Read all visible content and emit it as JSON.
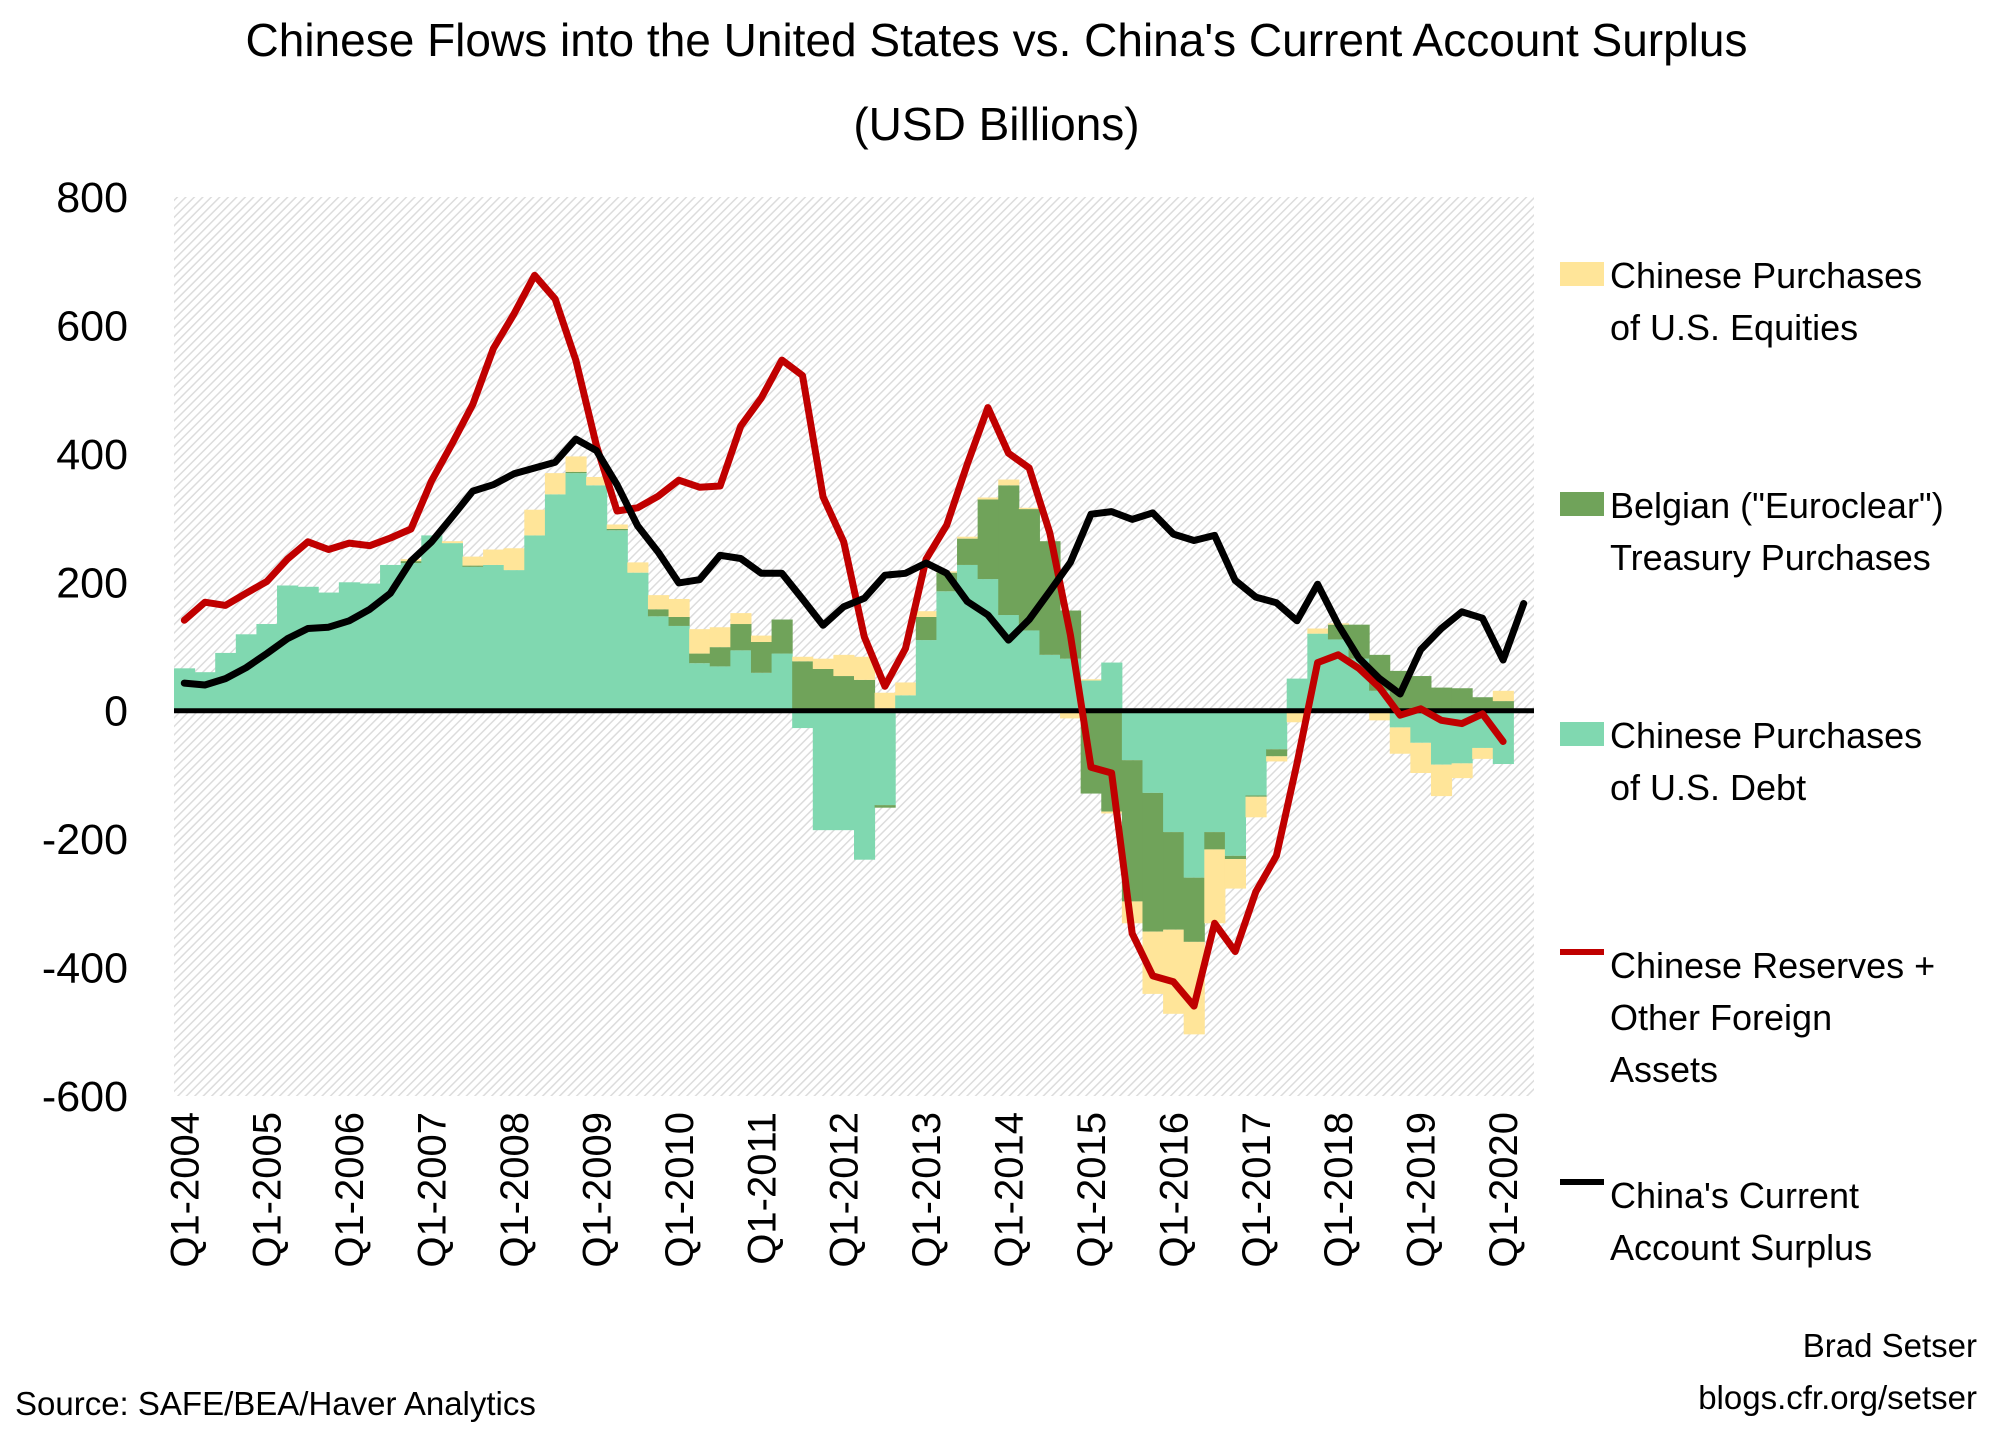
{
  "title": {
    "line1": "Chinese Flows into the United States vs. China's Current Account Surplus",
    "line2": "(USD Billions)"
  },
  "source": "Source: SAFE/BEA/Haver Analytics",
  "credit": {
    "author": "Brad Setser",
    "site": "blogs.cfr.org/setser"
  },
  "legend": [
    {
      "label": "Chinese Purchases\nof U.S. Equities",
      "color": "#ffe599",
      "kind": "bar"
    },
    {
      "label": "Belgian (\"Euroclear\")\nTreasury Purchases",
      "color": "#70a35a",
      "kind": "bar"
    },
    {
      "label": "Chinese Purchases\nof U.S. Debt",
      "color": "#80d8b0",
      "kind": "bar"
    },
    {
      "label": "Chinese Reserves +\nOther Foreign\nAssets",
      "color": "#c00000",
      "kind": "line"
    },
    {
      "label": "China's Current\nAccount Surplus",
      "color": "#000000",
      "kind": "line"
    }
  ],
  "chart_data": {
    "type": "bar",
    "stacked": true,
    "title": "Chinese Flows into the United States vs. China's Current Account Surplus (USD Billions)",
    "ylim": [
      -600,
      800
    ],
    "yticks": [
      "800",
      "600",
      "400",
      "200",
      "0",
      "-200",
      "-400",
      "-600"
    ],
    "ytick_values": [
      800,
      600,
      400,
      200,
      0,
      -200,
      -400,
      -600
    ],
    "grid": false,
    "legend_position": "right",
    "x_start": "Q1-2004",
    "x_count": 66,
    "xticks": [
      "Q1-2004",
      "Q1-2005",
      "Q1-2006",
      "Q1-2007",
      "Q1-2008",
      "Q1-2009",
      "Q1-2010",
      "Q1-2011",
      "Q1-2012",
      "Q1-2013",
      "Q1-2014",
      "Q1-2015",
      "Q1-2016",
      "Q1-2017",
      "Q1-2018",
      "Q1-2019",
      "Q1-2020"
    ],
    "series": [
      {
        "name": "Chinese Purchases of U.S. Debt",
        "type": "bar",
        "color": "#80d8b0",
        "values": [
          66,
          60,
          90,
          119,
          135,
          195,
          193,
          184,
          200,
          198,
          227,
          230,
          273,
          261,
          224,
          227,
          219,
          273,
          337,
          370,
          351,
          281,
          215,
          147,
          132,
          74,
          69,
          94,
          59,
          89,
          -27,
          -186,
          -186,
          -232,
          -147,
          24,
          110,
          186,
          227,
          205,
          149,
          125,
          87,
          81,
          47,
          75,
          -77,
          -128,
          -189,
          -260,
          -189,
          -226,
          -132,
          -60,
          50,
          120,
          111,
          81,
          31,
          -26,
          -50,
          -84,
          -82,
          -58,
          -83,
          null
        ]
      },
      {
        "name": "Belgian (\"Euroclear\") Treasury Purchases",
        "type": "bar",
        "color": "#70a35a",
        "values": [
          0,
          0,
          0,
          0,
          0,
          0,
          0,
          0,
          0,
          0,
          0,
          3,
          0,
          0,
          2,
          0,
          0,
          0,
          0,
          2,
          0,
          2,
          0,
          11,
          14,
          15,
          30,
          41,
          48,
          53,
          77,
          65,
          54,
          48,
          -4,
          0,
          36,
          29,
          41,
          124,
          202,
          189,
          177,
          75,
          -129,
          -157,
          -220,
          -216,
          -152,
          -100,
          -27,
          -5,
          -2,
          -11,
          0,
          0,
          23,
          53,
          56,
          62,
          54,
          36,
          35,
          21,
          15,
          null
        ]
      },
      {
        "name": "Chinese Purchases of U.S. Equities",
        "type": "bar",
        "color": "#ffe599",
        "values": [
          0,
          0,
          0,
          0,
          0,
          0,
          0,
          0,
          0,
          0,
          0,
          3,
          0,
          3,
          14,
          24,
          34,
          40,
          33,
          24,
          13,
          7,
          16,
          22,
          28,
          38,
          31,
          17,
          10,
          0,
          7,
          16,
          33,
          36,
          28,
          20,
          9,
          2,
          3,
          3,
          9,
          2,
          0,
          -12,
          2,
          -3,
          -34,
          -97,
          -131,
          -144,
          -115,
          -46,
          -32,
          -8,
          -18,
          8,
          2,
          0,
          -15,
          -41,
          -47,
          -49,
          -23,
          -17,
          16,
          null
        ]
      },
      {
        "name": "Chinese Reserves + Other Foreign Assets",
        "type": "line",
        "color": "#c00000",
        "values": [
          141,
          169,
          164,
          183,
          201,
          236,
          263,
          251,
          261,
          257,
          269,
          283,
          358,
          416,
          477,
          564,
          618,
          678,
          641,
          546,
          413,
          311,
          316,
          334,
          359,
          348,
          350,
          443,
          487,
          546,
          522,
          333,
          263,
          115,
          38,
          97,
          236,
          289,
          384,
          472,
          401,
          378,
          277,
          118,
          -88,
          -97,
          -347,
          -413,
          -422,
          -460,
          -331,
          -375,
          -282,
          -226,
          -82,
          75,
          87,
          66,
          36,
          -7,
          3,
          -15,
          -20,
          -5,
          -48,
          null
        ]
      },
      {
        "name": "China's Current Account Surplus",
        "type": "line",
        "color": "#000000",
        "values": [
          43,
          40,
          50,
          67,
          89,
          112,
          128,
          130,
          140,
          158,
          183,
          233,
          263,
          302,
          342,
          352,
          369,
          378,
          387,
          423,
          405,
          352,
          288,
          247,
          199,
          204,
          242,
          237,
          214,
          214,
          174,
          133,
          162,
          175,
          211,
          214,
          230,
          214,
          170,
          149,
          110,
          142,
          186,
          231,
          306,
          310,
          298,
          308,
          275,
          265,
          273,
          203,
          177,
          168,
          140,
          197,
          134,
          82,
          50,
          26,
          95,
          128,
          154,
          144,
          79,
          167
        ]
      }
    ]
  }
}
